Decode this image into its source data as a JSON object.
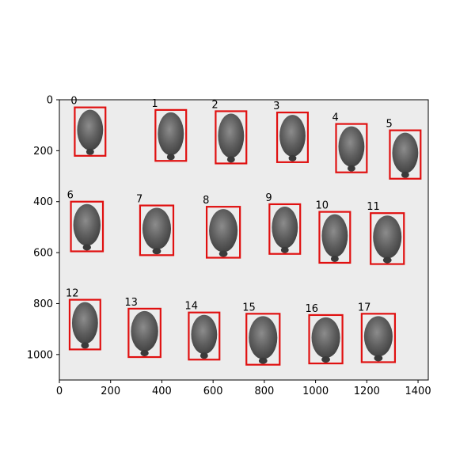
{
  "axes": {
    "x_ticks": [
      "0",
      "200",
      "400",
      "600",
      "800",
      "1000",
      "1200",
      "1400"
    ],
    "y_ticks": [
      "0",
      "200",
      "400",
      "600",
      "800",
      "1000"
    ],
    "xlim": [
      0,
      1440
    ],
    "ylim": [
      1100,
      0
    ]
  },
  "colors": {
    "box": "#e01010",
    "background": "#ececec",
    "seed": "#5a5a5a"
  },
  "detections": [
    {
      "label": "0",
      "x0": 60,
      "y0": 30,
      "x1": 180,
      "y1": 220
    },
    {
      "label": "1",
      "x0": 375,
      "y0": 40,
      "x1": 495,
      "y1": 240
    },
    {
      "label": "2",
      "x0": 610,
      "y0": 45,
      "x1": 730,
      "y1": 250
    },
    {
      "label": "3",
      "x0": 850,
      "y0": 50,
      "x1": 970,
      "y1": 245
    },
    {
      "label": "4",
      "x0": 1080,
      "y0": 95,
      "x1": 1200,
      "y1": 285
    },
    {
      "label": "5",
      "x0": 1290,
      "y0": 120,
      "x1": 1410,
      "y1": 310
    },
    {
      "label": "6",
      "x0": 45,
      "y0": 400,
      "x1": 170,
      "y1": 595
    },
    {
      "label": "7",
      "x0": 315,
      "y0": 415,
      "x1": 445,
      "y1": 610
    },
    {
      "label": "8",
      "x0": 575,
      "y0": 420,
      "x1": 705,
      "y1": 620
    },
    {
      "label": "9",
      "x0": 820,
      "y0": 410,
      "x1": 940,
      "y1": 605
    },
    {
      "label": "10",
      "x0": 1015,
      "y0": 440,
      "x1": 1135,
      "y1": 640
    },
    {
      "label": "11",
      "x0": 1215,
      "y0": 445,
      "x1": 1345,
      "y1": 645
    },
    {
      "label": "12",
      "x0": 40,
      "y0": 785,
      "x1": 160,
      "y1": 980
    },
    {
      "label": "13",
      "x0": 270,
      "y0": 820,
      "x1": 395,
      "y1": 1010
    },
    {
      "label": "14",
      "x0": 505,
      "y0": 835,
      "x1": 625,
      "y1": 1020
    },
    {
      "label": "15",
      "x0": 730,
      "y0": 840,
      "x1": 860,
      "y1": 1040
    },
    {
      "label": "16",
      "x0": 975,
      "y0": 845,
      "x1": 1105,
      "y1": 1035
    },
    {
      "label": "17",
      "x0": 1180,
      "y0": 840,
      "x1": 1310,
      "y1": 1030
    }
  ]
}
